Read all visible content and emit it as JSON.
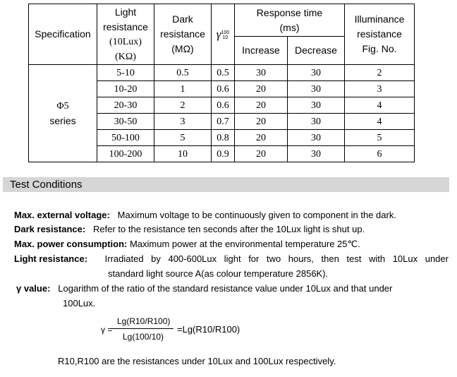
{
  "table": {
    "header": {
      "specification": "Specification",
      "light_resistance": [
        "Light",
        "resistance",
        "(10Lux)",
        "(KΩ)"
      ],
      "dark_resistance": [
        "Dark",
        "resistance",
        "(MΩ)"
      ],
      "gamma": {
        "symbol": "γ",
        "sup": "100",
        "sub": "10"
      },
      "response_time": [
        "Response time",
        "(ms)"
      ],
      "increase": "Increase",
      "decrease": "Decrease",
      "illuminance": [
        "Illuminance",
        "resistance",
        "Fig. No."
      ]
    },
    "group_label": [
      "Φ5",
      "series"
    ],
    "rows": [
      {
        "light": "5-10",
        "dark": "0.5",
        "gamma": "0.5",
        "increase": "30",
        "decrease": "30",
        "fig": "2"
      },
      {
        "light": "10-20",
        "dark": "1",
        "gamma": "0.6",
        "increase": "20",
        "decrease": "30",
        "fig": "3"
      },
      {
        "light": "20-30",
        "dark": "2",
        "gamma": "0.6",
        "increase": "20",
        "decrease": "30",
        "fig": "4"
      },
      {
        "light": "30-50",
        "dark": "3",
        "gamma": "0.7",
        "increase": "20",
        "decrease": "30",
        "fig": "4"
      },
      {
        "light": "50-100",
        "dark": "5",
        "gamma": "0.8",
        "increase": "20",
        "decrease": "30",
        "fig": "5"
      },
      {
        "light": "100-200",
        "dark": "10",
        "gamma": "0.9",
        "increase": "20",
        "decrease": "30",
        "fig": "6"
      }
    ]
  },
  "section": {
    "title": "Test Conditions"
  },
  "conditions": {
    "max_voltage": {
      "label": "Max. external voltage:",
      "text": "Maximum voltage to be continuously given to component in the dark."
    },
    "dark_resistance": {
      "label": "Dark resistance:",
      "text": "Refer to the resistance ten seconds after the 10Lux light is shut up."
    },
    "max_power": {
      "label": "Max. power consumption:",
      "text": "Maximum power at the environmental temperature 25℃."
    },
    "light_resistance": {
      "label": "Light resistance:",
      "words": [
        "Irradiated",
        "by",
        "400-600Lux",
        "light",
        "for",
        "two",
        "hours,",
        "then",
        "test",
        "with",
        "10Lux",
        "under"
      ],
      "line2": "standard light source A(as colour temperature 2856K)."
    },
    "gamma_value": {
      "label": "γ value:",
      "text": "Logarithm of the ratio of the standard resistance value under 10Lux and that under",
      "line2": "100Lux."
    }
  },
  "formula": {
    "lhs": "γ =",
    "numerator": "Lg(R10/R100)",
    "denominator": "Lg(100/10)",
    "rhs": "=Lg(R10/R100)"
  },
  "footnote": "R10,R100 are the resistances under 10Lux and 100Lux respectively."
}
